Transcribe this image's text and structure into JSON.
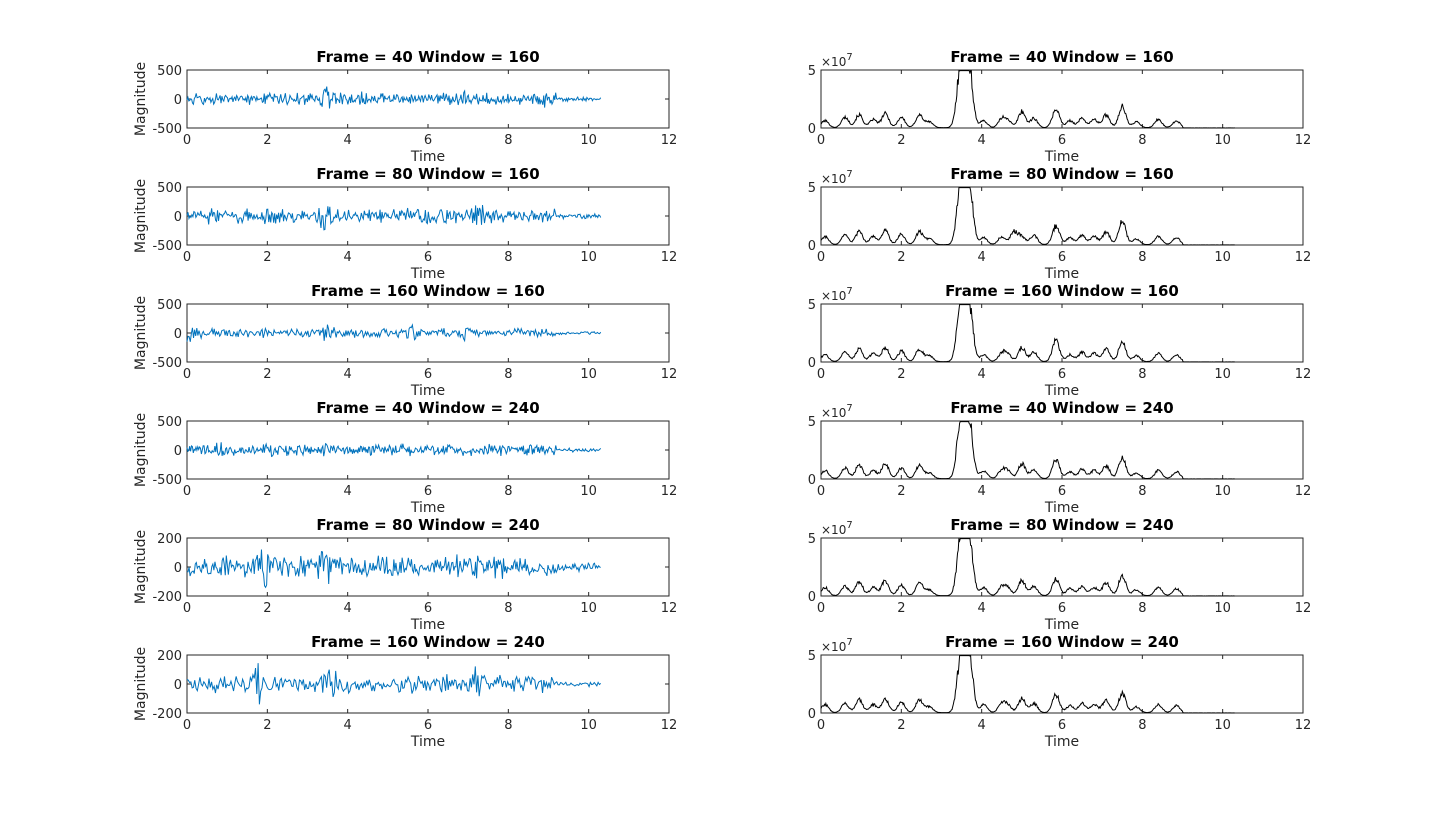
{
  "chart_data": [
    {
      "type": "line",
      "title": "Frame = 40 Window = 160",
      "xlabel": "Time",
      "ylabel": "Magnitude",
      "xlim": [
        0,
        12
      ],
      "ylim": [
        -500,
        500
      ],
      "yticks": [
        500,
        0,
        -500
      ],
      "yticklabels": [
        "500",
        "0",
        "-500"
      ],
      "xticks": [
        0,
        2,
        4,
        6,
        8,
        10,
        12
      ],
      "series": [
        {
          "color": "#0072BD",
          "x_range": [
            0,
            10.3
          ],
          "amplitude": 120,
          "peaks": [
            [
              3.48,
              300
            ],
            [
              4.4,
              160
            ],
            [
              6.8,
              200
            ],
            [
              8.9,
              150
            ]
          ],
          "points": 450,
          "seed": 11
        }
      ]
    },
    {
      "type": "line",
      "title": "Frame = 80 Window = 160",
      "xlabel": "Time",
      "ylabel": "Magnitude",
      "xlim": [
        0,
        12
      ],
      "ylim": [
        -500,
        500
      ],
      "yticks": [
        500,
        0,
        -500
      ],
      "yticklabels": [
        "500",
        "0",
        "-500"
      ],
      "xticks": [
        0,
        2,
        4,
        6,
        8,
        10,
        12
      ],
      "series": [
        {
          "color": "#0072BD",
          "x_range": [
            0,
            10.3
          ],
          "amplitude": 150,
          "peaks": [
            [
              3.45,
              330
            ],
            [
              7.25,
              360
            ],
            [
              2.1,
              180
            ]
          ],
          "points": 420,
          "seed": 23
        }
      ]
    },
    {
      "type": "line",
      "title": "Frame = 160 Window = 160",
      "xlabel": "Time",
      "ylabel": "Magnitude",
      "xlim": [
        0,
        12
      ],
      "ylim": [
        -500,
        500
      ],
      "yticks": [
        500,
        0,
        -500
      ],
      "yticklabels": [
        "500",
        "0",
        "-500"
      ],
      "xticks": [
        0,
        2,
        4,
        6,
        8,
        10,
        12
      ],
      "series": [
        {
          "color": "#0072BD",
          "x_range": [
            0,
            10.3
          ],
          "amplitude": 90,
          "peaks": [
            [
              3.5,
              230
            ],
            [
              5.6,
              180
            ],
            [
              6.9,
              200
            ],
            [
              0,
              260
            ]
          ],
          "points": 380,
          "seed": 37
        }
      ]
    },
    {
      "type": "line",
      "title": "Frame = 40 Window = 240",
      "xlabel": "Time",
      "ylabel": "Magnitude",
      "xlim": [
        0,
        12
      ],
      "ylim": [
        -500,
        500
      ],
      "yticks": [
        500,
        0,
        -500
      ],
      "yticklabels": [
        "500",
        "0",
        "-500"
      ],
      "xticks": [
        0,
        2,
        4,
        6,
        8,
        10,
        12
      ],
      "series": [
        {
          "color": "#0072BD",
          "x_range": [
            0,
            10.3
          ],
          "amplitude": 110,
          "peaks": [
            [
              3.5,
              190
            ],
            [
              0.8,
              150
            ],
            [
              2.1,
              170
            ]
          ],
          "points": 460,
          "seed": 41
        }
      ]
    },
    {
      "type": "line",
      "title": "Frame = 80 Window = 240",
      "xlabel": "Time",
      "ylabel": "Magnitude",
      "xlim": [
        0,
        12
      ],
      "ylim": [
        -200,
        200
      ],
      "yticks": [
        200,
        0,
        -200
      ],
      "yticklabels": [
        "200",
        "0",
        "-200"
      ],
      "xticks": [
        0,
        2,
        4,
        6,
        8,
        10,
        12
      ],
      "series": [
        {
          "color": "#0072BD",
          "x_range": [
            0,
            10.3
          ],
          "amplitude": 90,
          "peaks": [
            [
              3.4,
              190
            ],
            [
              1.95,
              180
            ],
            [
              7.2,
              110
            ],
            [
              0.9,
              130
            ]
          ],
          "points": 400,
          "seed": 53
        }
      ]
    },
    {
      "type": "line",
      "title": "Frame = 160 Window = 240",
      "xlabel": "Time",
      "ylabel": "Magnitude",
      "xlim": [
        0,
        12
      ],
      "ylim": [
        -200,
        200
      ],
      "yticks": [
        200,
        0,
        -200
      ],
      "yticklabels": [
        "200",
        "0",
        "-200"
      ],
      "xticks": [
        0,
        2,
        4,
        6,
        8,
        10,
        12
      ],
      "series": [
        {
          "color": "#0072BD",
          "x_range": [
            0,
            10.3
          ],
          "amplitude": 70,
          "peaks": [
            [
              1.75,
              170
            ],
            [
              3.6,
              170
            ],
            [
              7.2,
              170
            ],
            [
              0,
              120
            ]
          ],
          "points": 320,
          "seed": 67
        }
      ]
    },
    {
      "type": "line",
      "title": "Frame = 40 Window = 160",
      "xlabel": "Time",
      "ylabel": "",
      "xlim": [
        0,
        12
      ],
      "ylim": [
        0,
        5
      ],
      "yticks": [
        5,
        0
      ],
      "yticklabels": [
        "5",
        "0"
      ],
      "xticks": [
        0,
        2,
        4,
        6,
        8,
        10,
        12
      ],
      "scale_exponent": "7",
      "series": [
        {
          "color": "#000000",
          "x_range": [
            0,
            10.3
          ],
          "base_peaks": [
            [
              0.1,
              0.6
            ],
            [
              0.6,
              0.9
            ],
            [
              0.95,
              1.1
            ],
            [
              1.3,
              0.7
            ],
            [
              1.6,
              1.2
            ],
            [
              2.0,
              0.9
            ],
            [
              2.45,
              1.1
            ],
            [
              2.7,
              0.5
            ],
            [
              3.45,
              3.0
            ],
            [
              3.55,
              4.5
            ],
            [
              3.7,
              4.3
            ],
            [
              4.05,
              0.6
            ],
            [
              4.5,
              0.7
            ],
            [
              4.65,
              0.6
            ],
            [
              5.0,
              1.4
            ],
            [
              5.3,
              0.8
            ],
            [
              5.85,
              1.6
            ],
            [
              6.2,
              0.6
            ],
            [
              6.5,
              0.8
            ],
            [
              6.8,
              0.7
            ],
            [
              7.1,
              1.1
            ],
            [
              7.5,
              1.8
            ],
            [
              7.85,
              0.5
            ],
            [
              8.4,
              0.7
            ],
            [
              8.85,
              0.6
            ]
          ],
          "points": 600,
          "seed": 101
        }
      ]
    },
    {
      "type": "line",
      "title": "Frame = 80 Window = 160",
      "xlabel": "Time",
      "ylabel": "",
      "xlim": [
        0,
        12
      ],
      "ylim": [
        0,
        5
      ],
      "yticks": [
        5,
        0
      ],
      "yticklabels": [
        "5",
        "0"
      ],
      "xticks": [
        0,
        2,
        4,
        6,
        8,
        10,
        12
      ],
      "scale_exponent": "7",
      "series": [
        {
          "color": "#000000",
          "x_range": [
            0,
            10.3
          ],
          "base_peaks": [
            [
              0.1,
              0.7
            ],
            [
              0.6,
              0.8
            ],
            [
              0.95,
              1.1
            ],
            [
              1.3,
              0.7
            ],
            [
              1.6,
              1.2
            ],
            [
              2.0,
              0.9
            ],
            [
              2.45,
              1.1
            ],
            [
              2.7,
              0.5
            ],
            [
              3.45,
              3.2
            ],
            [
              3.55,
              4.6
            ],
            [
              3.7,
              4.5
            ],
            [
              4.05,
              0.6
            ],
            [
              4.5,
              0.7
            ],
            [
              4.8,
              1.1
            ],
            [
              5.0,
              0.7
            ],
            [
              5.3,
              0.8
            ],
            [
              5.85,
              1.6
            ],
            [
              6.2,
              0.6
            ],
            [
              6.5,
              0.8
            ],
            [
              6.8,
              0.7
            ],
            [
              7.1,
              1.1
            ],
            [
              7.5,
              2.0
            ],
            [
              7.85,
              0.5
            ],
            [
              8.4,
              0.7
            ],
            [
              8.85,
              0.6
            ]
          ],
          "points": 600,
          "seed": 103
        }
      ]
    },
    {
      "type": "line",
      "title": "Frame = 160 Window = 160",
      "xlabel": "Time",
      "ylabel": "",
      "xlim": [
        0,
        12
      ],
      "ylim": [
        0,
        5
      ],
      "yticks": [
        5,
        0
      ],
      "yticklabels": [
        "5",
        "0"
      ],
      "xticks": [
        0,
        2,
        4,
        6,
        8,
        10,
        12
      ],
      "scale_exponent": "7",
      "series": [
        {
          "color": "#000000",
          "x_range": [
            0,
            10.3
          ],
          "base_peaks": [
            [
              0.1,
              0.6
            ],
            [
              0.6,
              0.9
            ],
            [
              0.95,
              1.1
            ],
            [
              1.3,
              0.7
            ],
            [
              1.6,
              1.2
            ],
            [
              2.0,
              0.9
            ],
            [
              2.45,
              1.1
            ],
            [
              2.7,
              0.5
            ],
            [
              3.45,
              3.0
            ],
            [
              3.55,
              4.3
            ],
            [
              3.7,
              4.3
            ],
            [
              4.05,
              0.6
            ],
            [
              4.5,
              0.7
            ],
            [
              4.65,
              0.6
            ],
            [
              5.0,
              1.2
            ],
            [
              5.3,
              0.8
            ],
            [
              5.85,
              1.8
            ],
            [
              6.2,
              0.6
            ],
            [
              6.5,
              0.8
            ],
            [
              6.8,
              0.7
            ],
            [
              7.1,
              1.1
            ],
            [
              7.5,
              1.7
            ],
            [
              7.85,
              0.5
            ],
            [
              8.4,
              0.7
            ],
            [
              8.85,
              0.6
            ]
          ],
          "points": 600,
          "seed": 107
        }
      ]
    },
    {
      "type": "line",
      "title": "Frame = 40 Window = 240",
      "xlabel": "Time",
      "ylabel": "",
      "xlim": [
        0,
        12
      ],
      "ylim": [
        0,
        5
      ],
      "yticks": [
        5,
        0
      ],
      "yticklabels": [
        "5",
        "0"
      ],
      "xticks": [
        0,
        2,
        4,
        6,
        8,
        10,
        12
      ],
      "scale_exponent": "7",
      "series": [
        {
          "color": "#000000",
          "x_range": [
            0,
            10.3
          ],
          "base_peaks": [
            [
              0.1,
              0.7
            ],
            [
              0.6,
              0.9
            ],
            [
              0.95,
              1.2
            ],
            [
              1.3,
              0.7
            ],
            [
              1.6,
              1.3
            ],
            [
              2.0,
              0.9
            ],
            [
              2.45,
              1.1
            ],
            [
              2.7,
              0.5
            ],
            [
              3.45,
              2.8
            ],
            [
              3.55,
              4.4
            ],
            [
              3.7,
              4.1
            ],
            [
              4.05,
              0.7
            ],
            [
              4.5,
              0.7
            ],
            [
              4.65,
              0.6
            ],
            [
              5.0,
              1.3
            ],
            [
              5.3,
              0.8
            ],
            [
              5.85,
              1.6
            ],
            [
              6.2,
              0.6
            ],
            [
              6.5,
              0.8
            ],
            [
              6.8,
              0.7
            ],
            [
              7.1,
              1.1
            ],
            [
              7.5,
              1.8
            ],
            [
              7.85,
              0.5
            ],
            [
              8.4,
              0.7
            ],
            [
              8.85,
              0.6
            ]
          ],
          "points": 600,
          "seed": 109
        }
      ]
    },
    {
      "type": "line",
      "title": "Frame = 80 Window = 240",
      "xlabel": "Time",
      "ylabel": "",
      "xlim": [
        0,
        12
      ],
      "ylim": [
        0,
        5
      ],
      "yticks": [
        5,
        0
      ],
      "yticklabels": [
        "5",
        "0"
      ],
      "xticks": [
        0,
        2,
        4,
        6,
        8,
        10,
        12
      ],
      "scale_exponent": "7",
      "series": [
        {
          "color": "#000000",
          "x_range": [
            0,
            10.3
          ],
          "base_peaks": [
            [
              0.1,
              0.7
            ],
            [
              0.6,
              0.8
            ],
            [
              0.95,
              1.2
            ],
            [
              1.3,
              0.7
            ],
            [
              1.6,
              1.3
            ],
            [
              2.0,
              0.9
            ],
            [
              2.45,
              1.1
            ],
            [
              2.7,
              0.5
            ],
            [
              3.45,
              2.6
            ],
            [
              3.55,
              4.5
            ],
            [
              3.7,
              4.3
            ],
            [
              4.05,
              0.7
            ],
            [
              4.5,
              0.7
            ],
            [
              4.65,
              0.6
            ],
            [
              5.0,
              1.3
            ],
            [
              5.3,
              0.8
            ],
            [
              5.85,
              1.4
            ],
            [
              6.2,
              0.6
            ],
            [
              6.5,
              0.8
            ],
            [
              6.8,
              0.7
            ],
            [
              7.1,
              1.1
            ],
            [
              7.5,
              1.7
            ],
            [
              7.85,
              0.5
            ],
            [
              8.4,
              0.7
            ],
            [
              8.85,
              0.6
            ]
          ],
          "points": 600,
          "seed": 113
        }
      ]
    },
    {
      "type": "line",
      "title": "Frame = 160 Window = 240",
      "xlabel": "Time",
      "ylabel": "",
      "xlim": [
        0,
        12
      ],
      "ylim": [
        0,
        5
      ],
      "yticks": [
        5,
        0
      ],
      "yticklabels": [
        "5",
        "0"
      ],
      "xticks": [
        0,
        2,
        4,
        6,
        8,
        10,
        12
      ],
      "scale_exponent": "7",
      "series": [
        {
          "color": "#000000",
          "x_range": [
            0,
            10.3
          ],
          "base_peaks": [
            [
              0.1,
              0.7
            ],
            [
              0.6,
              0.8
            ],
            [
              0.95,
              1.1
            ],
            [
              1.3,
              0.7
            ],
            [
              1.6,
              1.2
            ],
            [
              2.0,
              0.9
            ],
            [
              2.45,
              1.1
            ],
            [
              2.7,
              0.5
            ],
            [
              3.45,
              2.6
            ],
            [
              3.55,
              4.3
            ],
            [
              3.7,
              4.2
            ],
            [
              4.05,
              0.7
            ],
            [
              4.5,
              0.7
            ],
            [
              4.65,
              0.6
            ],
            [
              5.0,
              1.2
            ],
            [
              5.3,
              0.8
            ],
            [
              5.85,
              1.5
            ],
            [
              6.2,
              0.6
            ],
            [
              6.5,
              0.8
            ],
            [
              6.8,
              0.7
            ],
            [
              7.1,
              1.1
            ],
            [
              7.5,
              1.6
            ],
            [
              7.85,
              0.5
            ],
            [
              8.4,
              0.7
            ],
            [
              8.85,
              0.6
            ]
          ],
          "points": 600,
          "seed": 127
        }
      ]
    }
  ]
}
